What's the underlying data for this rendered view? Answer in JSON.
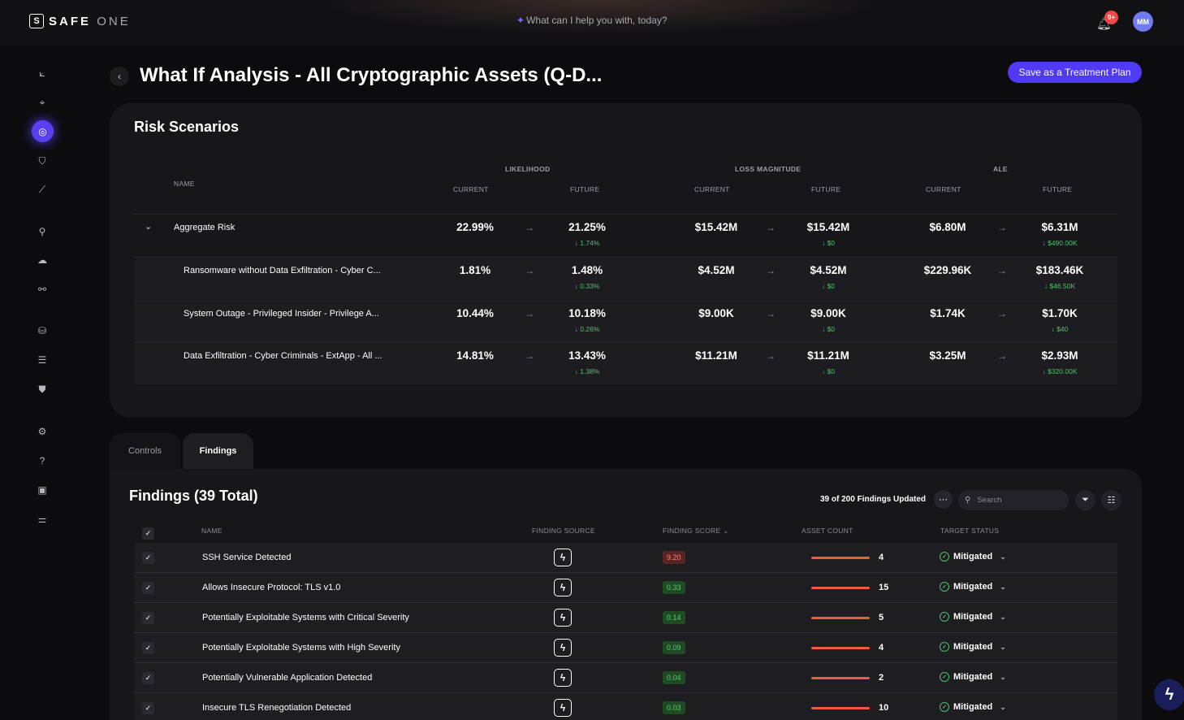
{
  "brand": {
    "name": "SAFE",
    "suffix": "ONE",
    "mark": "S"
  },
  "header": {
    "assistant_prompt": "What can I help you with, today?",
    "notification_badge": "9+",
    "avatar_initials": "MM"
  },
  "sidebar": {
    "icons": [
      "chart-icon",
      "target-icon",
      "radar-icon",
      "shield-check-icon",
      "trend-icon",
      "user-icon",
      "cloud-icon",
      "connections-icon",
      "database-icon",
      "list-icon",
      "shield-search-icon",
      "settings-icon",
      "help-icon",
      "folder-icon",
      "sliders-icon"
    ],
    "active_index": 2
  },
  "page": {
    "title": "What If Analysis - All Cryptographic Assets (Q-D...",
    "save_button": "Save as a Treatment Plan"
  },
  "risk": {
    "title": "Risk Scenarios",
    "headers": {
      "name": "NAME",
      "likelihood": "LIKELIHOOD",
      "loss": "LOSS MAGNITUDE",
      "ale": "ALE",
      "current": "CURRENT",
      "future": "FUTURE"
    },
    "rows": [
      {
        "name": "Aggregate Risk",
        "l_cur": "22.99%",
        "l_fut": "21.25%",
        "l_delta": "↓ 1.74%",
        "m_cur": "$15.42M",
        "m_fut": "$15.42M",
        "m_delta": "↓ $0",
        "a_cur": "$6.80M",
        "a_fut": "$6.31M",
        "a_delta": "↓ $490.00K"
      },
      {
        "name": "Ransomware without Data Exfiltration - Cyber C...",
        "l_cur": "1.81%",
        "l_fut": "1.48%",
        "l_delta": "↓ 0.33%",
        "m_cur": "$4.52M",
        "m_fut": "$4.52M",
        "m_delta": "↓ $0",
        "a_cur": "$229.96K",
        "a_fut": "$183.46K",
        "a_delta": "↓ $46.50K"
      },
      {
        "name": "System Outage - Privileged Insider - Privilege A...",
        "l_cur": "10.44%",
        "l_fut": "10.18%",
        "l_delta": "↓ 0.26%",
        "m_cur": "$9.00K",
        "m_fut": "$9.00K",
        "m_delta": "↓ $0",
        "a_cur": "$1.74K",
        "a_fut": "$1.70K",
        "a_delta": "↓ $40"
      },
      {
        "name": "Data Exfiltration - Cyber Criminals - ExtApp - All ...",
        "l_cur": "14.81%",
        "l_fut": "13.43%",
        "l_delta": "↓ 1.38%",
        "m_cur": "$11.21M",
        "m_fut": "$11.21M",
        "m_delta": "↓ $0",
        "a_cur": "$3.25M",
        "a_fut": "$2.93M",
        "a_delta": "↓ $320.00K"
      }
    ]
  },
  "tabs": {
    "controls": "Controls",
    "findings": "Findings",
    "active": "Findings"
  },
  "findings": {
    "title": "Findings (39 Total)",
    "updated": "39 of 200 Findings Updated",
    "search_placeholder": "Search",
    "headers": {
      "name": "NAME",
      "source": "FINDING SOURCE",
      "score": "FINDING SCORE",
      "assets": "ASSET COUNT",
      "status": "TARGET STATUS"
    },
    "rows": [
      {
        "name": "SSH Service Detected",
        "score": "9.20",
        "severity": "high",
        "assets": "4",
        "status": "Mitigated"
      },
      {
        "name": "Allows Insecure Protocol: TLS v1.0",
        "score": "0.33",
        "severity": "low",
        "assets": "15",
        "status": "Mitigated"
      },
      {
        "name": "Potentially Exploitable Systems with Critical Severity",
        "score": "0.14",
        "severity": "low",
        "assets": "5",
        "status": "Mitigated"
      },
      {
        "name": "Potentially Exploitable Systems with High Severity",
        "score": "0.09",
        "severity": "low",
        "assets": "4",
        "status": "Mitigated"
      },
      {
        "name": "Potentially Vulnerable Application Detected",
        "score": "0.04",
        "severity": "low",
        "assets": "2",
        "status": "Mitigated"
      },
      {
        "name": "Insecure TLS Renegotiation Detected",
        "score": "0.03",
        "severity": "low",
        "assets": "10",
        "status": "Mitigated"
      }
    ]
  },
  "colors": {
    "accent": "#4f3bf6",
    "positive": "#4fc16a",
    "bar": "#f05a40"
  }
}
